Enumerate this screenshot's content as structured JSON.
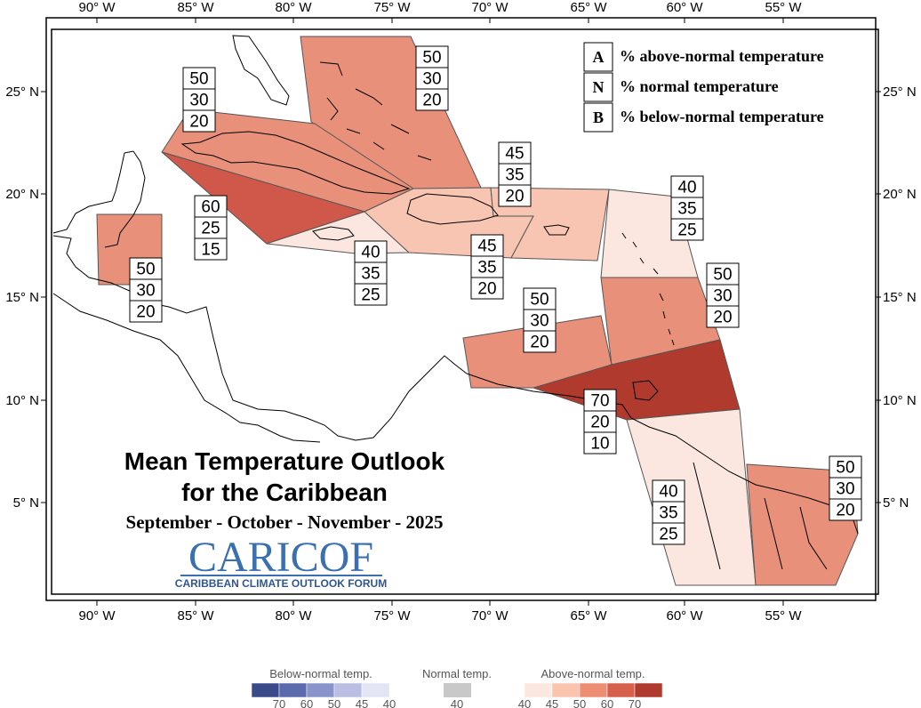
{
  "map": {
    "title_line1": "Mean Temperature Outlook",
    "title_line2": "for the Caribbean",
    "subtitle": "September - October - November - 2025",
    "logo_main": "CARICOF",
    "logo_sub": "CARIBBEAN CLIMATE OUTLOOK FORUM",
    "x_ticks": [
      "90° W",
      "85° W",
      "80° W",
      "75° W",
      "70° W",
      "65° W",
      "60° W",
      "55° W"
    ],
    "y_ticks": [
      "25° N",
      "20° N",
      "15° N",
      "10° N",
      "5° N"
    ],
    "key": [
      {
        "letter": "A",
        "text": "% above-normal temperature"
      },
      {
        "letter": "N",
        "text": "% normal temperature"
      },
      {
        "letter": "B",
        "text": "% below-normal temperature"
      }
    ],
    "regions": [
      {
        "name": "bahamas",
        "values": [
          "50",
          "30",
          "20"
        ],
        "color": "#e8907a"
      },
      {
        "name": "cuba",
        "values": [
          "50",
          "30",
          "20"
        ],
        "color": "#e8907a"
      },
      {
        "name": "cayman",
        "values": [
          "60",
          "25",
          "15"
        ],
        "color": "#d0584a"
      },
      {
        "name": "belize",
        "values": [
          "50",
          "30",
          "20"
        ],
        "color": "#e8907a"
      },
      {
        "name": "jamaica",
        "values": [
          "40",
          "35",
          "25"
        ],
        "color": "#fbe7e0"
      },
      {
        "name": "hispaniola",
        "values": [
          "45",
          "35",
          "20"
        ],
        "color": "#f7c5b2"
      },
      {
        "name": "puerto-rico",
        "values": [
          "45",
          "35",
          "20"
        ],
        "color": "#f7c5b2"
      },
      {
        "name": "leeward-islands",
        "values": [
          "40",
          "35",
          "25"
        ],
        "color": "#fbe7e0"
      },
      {
        "name": "windward-islands",
        "values": [
          "50",
          "30",
          "20"
        ],
        "color": "#e8907a"
      },
      {
        "name": "abc-islands",
        "values": [
          "50",
          "30",
          "20"
        ],
        "color": "#e8907a"
      },
      {
        "name": "trinidad",
        "values": [
          "70",
          "20",
          "10"
        ],
        "color": "#b03a2e"
      },
      {
        "name": "guyana",
        "values": [
          "40",
          "35",
          "25"
        ],
        "color": "#fbe7e0"
      },
      {
        "name": "suriname-guiana",
        "values": [
          "50",
          "30",
          "20"
        ],
        "color": "#e8907a"
      }
    ]
  },
  "legend": {
    "below_label": "Below-normal temp.",
    "normal_label": "Normal temp.",
    "above_label": "Above-normal temp.",
    "below_colors": [
      "#3b4a8a",
      "#5b69ad",
      "#8a94cc",
      "#b9bee2",
      "#e3e5f4"
    ],
    "below_ticks": [
      "70",
      "60",
      "50",
      "45",
      "40"
    ],
    "normal_color": "#c8c8c8",
    "normal_ticks": [
      "40"
    ],
    "above_colors": [
      "#fde8df",
      "#f9c3ad",
      "#ee8e72",
      "#d7604c",
      "#b03a2e"
    ],
    "above_ticks": [
      "40",
      "45",
      "50",
      "60",
      "70"
    ]
  }
}
